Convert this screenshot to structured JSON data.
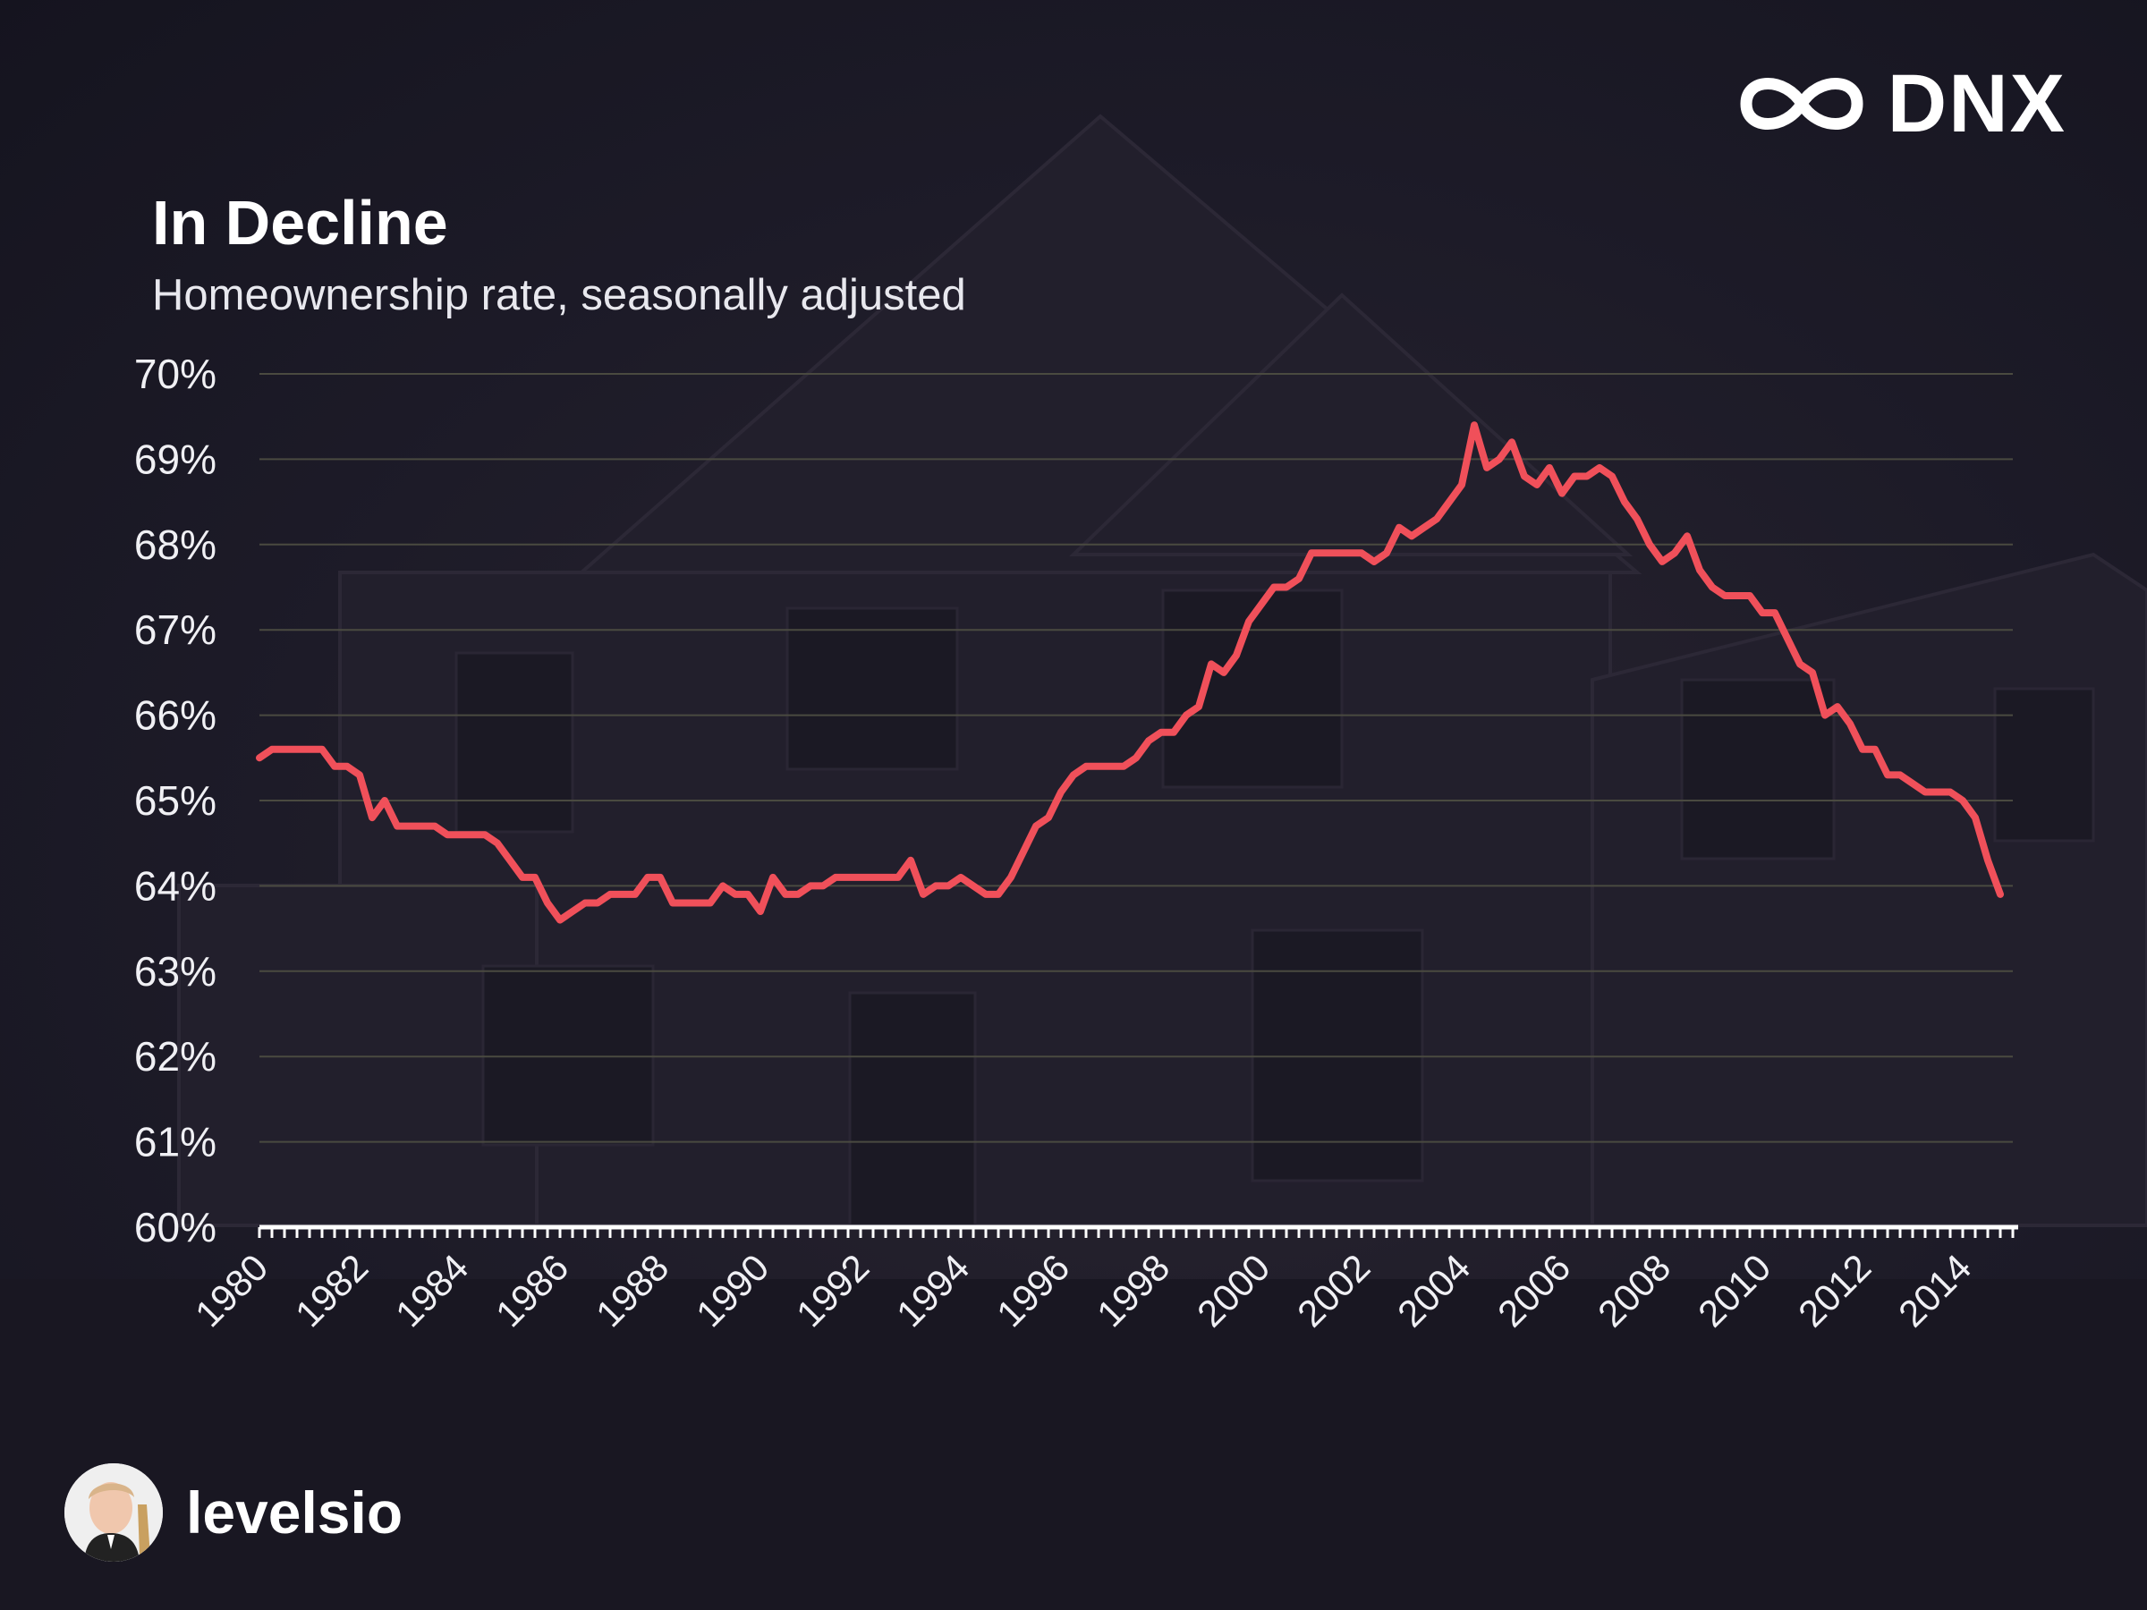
{
  "brand": {
    "logo_text": "DNX",
    "logo_icon": "infinity-icon"
  },
  "author": {
    "name": "levelsio",
    "avatar_icon": "avatar-photo"
  },
  "colors": {
    "line": "#f0505a",
    "background": "#1a1826",
    "grid": "#4a4a40",
    "text": "#ffffff"
  },
  "chart_data": {
    "type": "line",
    "title": "In Decline",
    "subtitle": "Homeownership rate, seasonally adjusted",
    "xlabel": "",
    "ylabel": "",
    "ylim": [
      60,
      70
    ],
    "xlim": [
      1980,
      2015
    ],
    "grid": true,
    "yticks": [
      "60%",
      "61%",
      "62%",
      "63%",
      "64%",
      "65%",
      "66%",
      "67%",
      "68%",
      "69%",
      "70%"
    ],
    "xticks": [
      "1980",
      "1982",
      "1984",
      "1986",
      "1988",
      "1990",
      "1992",
      "1994",
      "1996",
      "1998",
      "2000",
      "2002",
      "2004",
      "2006",
      "2008",
      "2010",
      "2012",
      "2014"
    ],
    "series": [
      {
        "color": "#f0505a",
        "points": [
          [
            1980.0,
            65.5
          ],
          [
            1980.25,
            65.6
          ],
          [
            1980.5,
            65.6
          ],
          [
            1980.75,
            65.6
          ],
          [
            1981.0,
            65.6
          ],
          [
            1981.25,
            65.6
          ],
          [
            1981.5,
            65.4
          ],
          [
            1981.75,
            65.4
          ],
          [
            1982.0,
            65.3
          ],
          [
            1982.25,
            64.8
          ],
          [
            1982.5,
            65.0
          ],
          [
            1982.75,
            64.7
          ],
          [
            1983.0,
            64.7
          ],
          [
            1983.25,
            64.7
          ],
          [
            1983.5,
            64.7
          ],
          [
            1983.75,
            64.6
          ],
          [
            1984.0,
            64.6
          ],
          [
            1984.25,
            64.6
          ],
          [
            1984.5,
            64.6
          ],
          [
            1984.75,
            64.5
          ],
          [
            1985.0,
            64.3
          ],
          [
            1985.25,
            64.1
          ],
          [
            1985.5,
            64.1
          ],
          [
            1985.75,
            63.8
          ],
          [
            1986.0,
            63.6
          ],
          [
            1986.25,
            63.7
          ],
          [
            1986.5,
            63.8
          ],
          [
            1986.75,
            63.8
          ],
          [
            1987.0,
            63.9
          ],
          [
            1987.25,
            63.9
          ],
          [
            1987.5,
            63.9
          ],
          [
            1987.75,
            64.1
          ],
          [
            1988.0,
            64.1
          ],
          [
            1988.25,
            63.8
          ],
          [
            1988.5,
            63.8
          ],
          [
            1988.75,
            63.8
          ],
          [
            1989.0,
            63.8
          ],
          [
            1989.25,
            64.0
          ],
          [
            1989.5,
            63.9
          ],
          [
            1989.75,
            63.9
          ],
          [
            1990.0,
            63.7
          ],
          [
            1990.25,
            64.1
          ],
          [
            1990.5,
            63.9
          ],
          [
            1990.75,
            63.9
          ],
          [
            1991.0,
            64.0
          ],
          [
            1991.25,
            64.0
          ],
          [
            1991.5,
            64.1
          ],
          [
            1991.75,
            64.1
          ],
          [
            1992.0,
            64.1
          ],
          [
            1992.25,
            64.1
          ],
          [
            1992.5,
            64.1
          ],
          [
            1992.75,
            64.1
          ],
          [
            1993.0,
            64.3
          ],
          [
            1993.25,
            63.9
          ],
          [
            1993.5,
            64.0
          ],
          [
            1993.75,
            64.0
          ],
          [
            1994.0,
            64.1
          ],
          [
            1994.25,
            64.0
          ],
          [
            1994.5,
            63.9
          ],
          [
            1994.75,
            63.9
          ],
          [
            1995.0,
            64.1
          ],
          [
            1995.25,
            64.4
          ],
          [
            1995.5,
            64.7
          ],
          [
            1995.75,
            64.8
          ],
          [
            1996.0,
            65.1
          ],
          [
            1996.25,
            65.3
          ],
          [
            1996.5,
            65.4
          ],
          [
            1996.75,
            65.4
          ],
          [
            1997.0,
            65.4
          ],
          [
            1997.25,
            65.4
          ],
          [
            1997.5,
            65.5
          ],
          [
            1997.75,
            65.7
          ],
          [
            1998.0,
            65.8
          ],
          [
            1998.25,
            65.8
          ],
          [
            1998.5,
            66.0
          ],
          [
            1998.75,
            66.1
          ],
          [
            1999.0,
            66.6
          ],
          [
            1999.25,
            66.5
          ],
          [
            1999.5,
            66.7
          ],
          [
            1999.75,
            67.1
          ],
          [
            2000.0,
            67.3
          ],
          [
            2000.25,
            67.5
          ],
          [
            2000.5,
            67.5
          ],
          [
            2000.75,
            67.6
          ],
          [
            2001.0,
            67.9
          ],
          [
            2001.25,
            67.9
          ],
          [
            2001.5,
            67.9
          ],
          [
            2001.75,
            67.9
          ],
          [
            2002.0,
            67.9
          ],
          [
            2002.25,
            67.8
          ],
          [
            2002.5,
            67.9
          ],
          [
            2002.75,
            68.2
          ],
          [
            2003.0,
            68.1
          ],
          [
            2003.25,
            68.2
          ],
          [
            2003.5,
            68.3
          ],
          [
            2003.75,
            68.5
          ],
          [
            2004.0,
            68.7
          ],
          [
            2004.25,
            69.4
          ],
          [
            2004.5,
            68.9
          ],
          [
            2004.75,
            69.0
          ],
          [
            2005.0,
            69.2
          ],
          [
            2005.25,
            68.8
          ],
          [
            2005.5,
            68.7
          ],
          [
            2005.75,
            68.9
          ],
          [
            2006.0,
            68.6
          ],
          [
            2006.25,
            68.8
          ],
          [
            2006.5,
            68.8
          ],
          [
            2006.75,
            68.9
          ],
          [
            2007.0,
            68.8
          ],
          [
            2007.25,
            68.5
          ],
          [
            2007.5,
            68.3
          ],
          [
            2007.75,
            68.0
          ],
          [
            2008.0,
            67.8
          ],
          [
            2008.25,
            67.9
          ],
          [
            2008.5,
            68.1
          ],
          [
            2008.75,
            67.7
          ],
          [
            2009.0,
            67.5
          ],
          [
            2009.25,
            67.4
          ],
          [
            2009.5,
            67.4
          ],
          [
            2009.75,
            67.4
          ],
          [
            2010.0,
            67.2
          ],
          [
            2010.25,
            67.2
          ],
          [
            2010.5,
            66.9
          ],
          [
            2010.75,
            66.6
          ],
          [
            2011.0,
            66.5
          ],
          [
            2011.25,
            66.0
          ],
          [
            2011.5,
            66.1
          ],
          [
            2011.75,
            65.9
          ],
          [
            2012.0,
            65.6
          ],
          [
            2012.25,
            65.6
          ],
          [
            2012.5,
            65.3
          ],
          [
            2012.75,
            65.3
          ],
          [
            2013.0,
            65.2
          ],
          [
            2013.25,
            65.1
          ],
          [
            2013.5,
            65.1
          ],
          [
            2013.75,
            65.1
          ],
          [
            2014.0,
            65.0
          ],
          [
            2014.25,
            64.8
          ],
          [
            2014.5,
            64.3
          ],
          [
            2014.75,
            63.9
          ]
        ]
      }
    ]
  }
}
